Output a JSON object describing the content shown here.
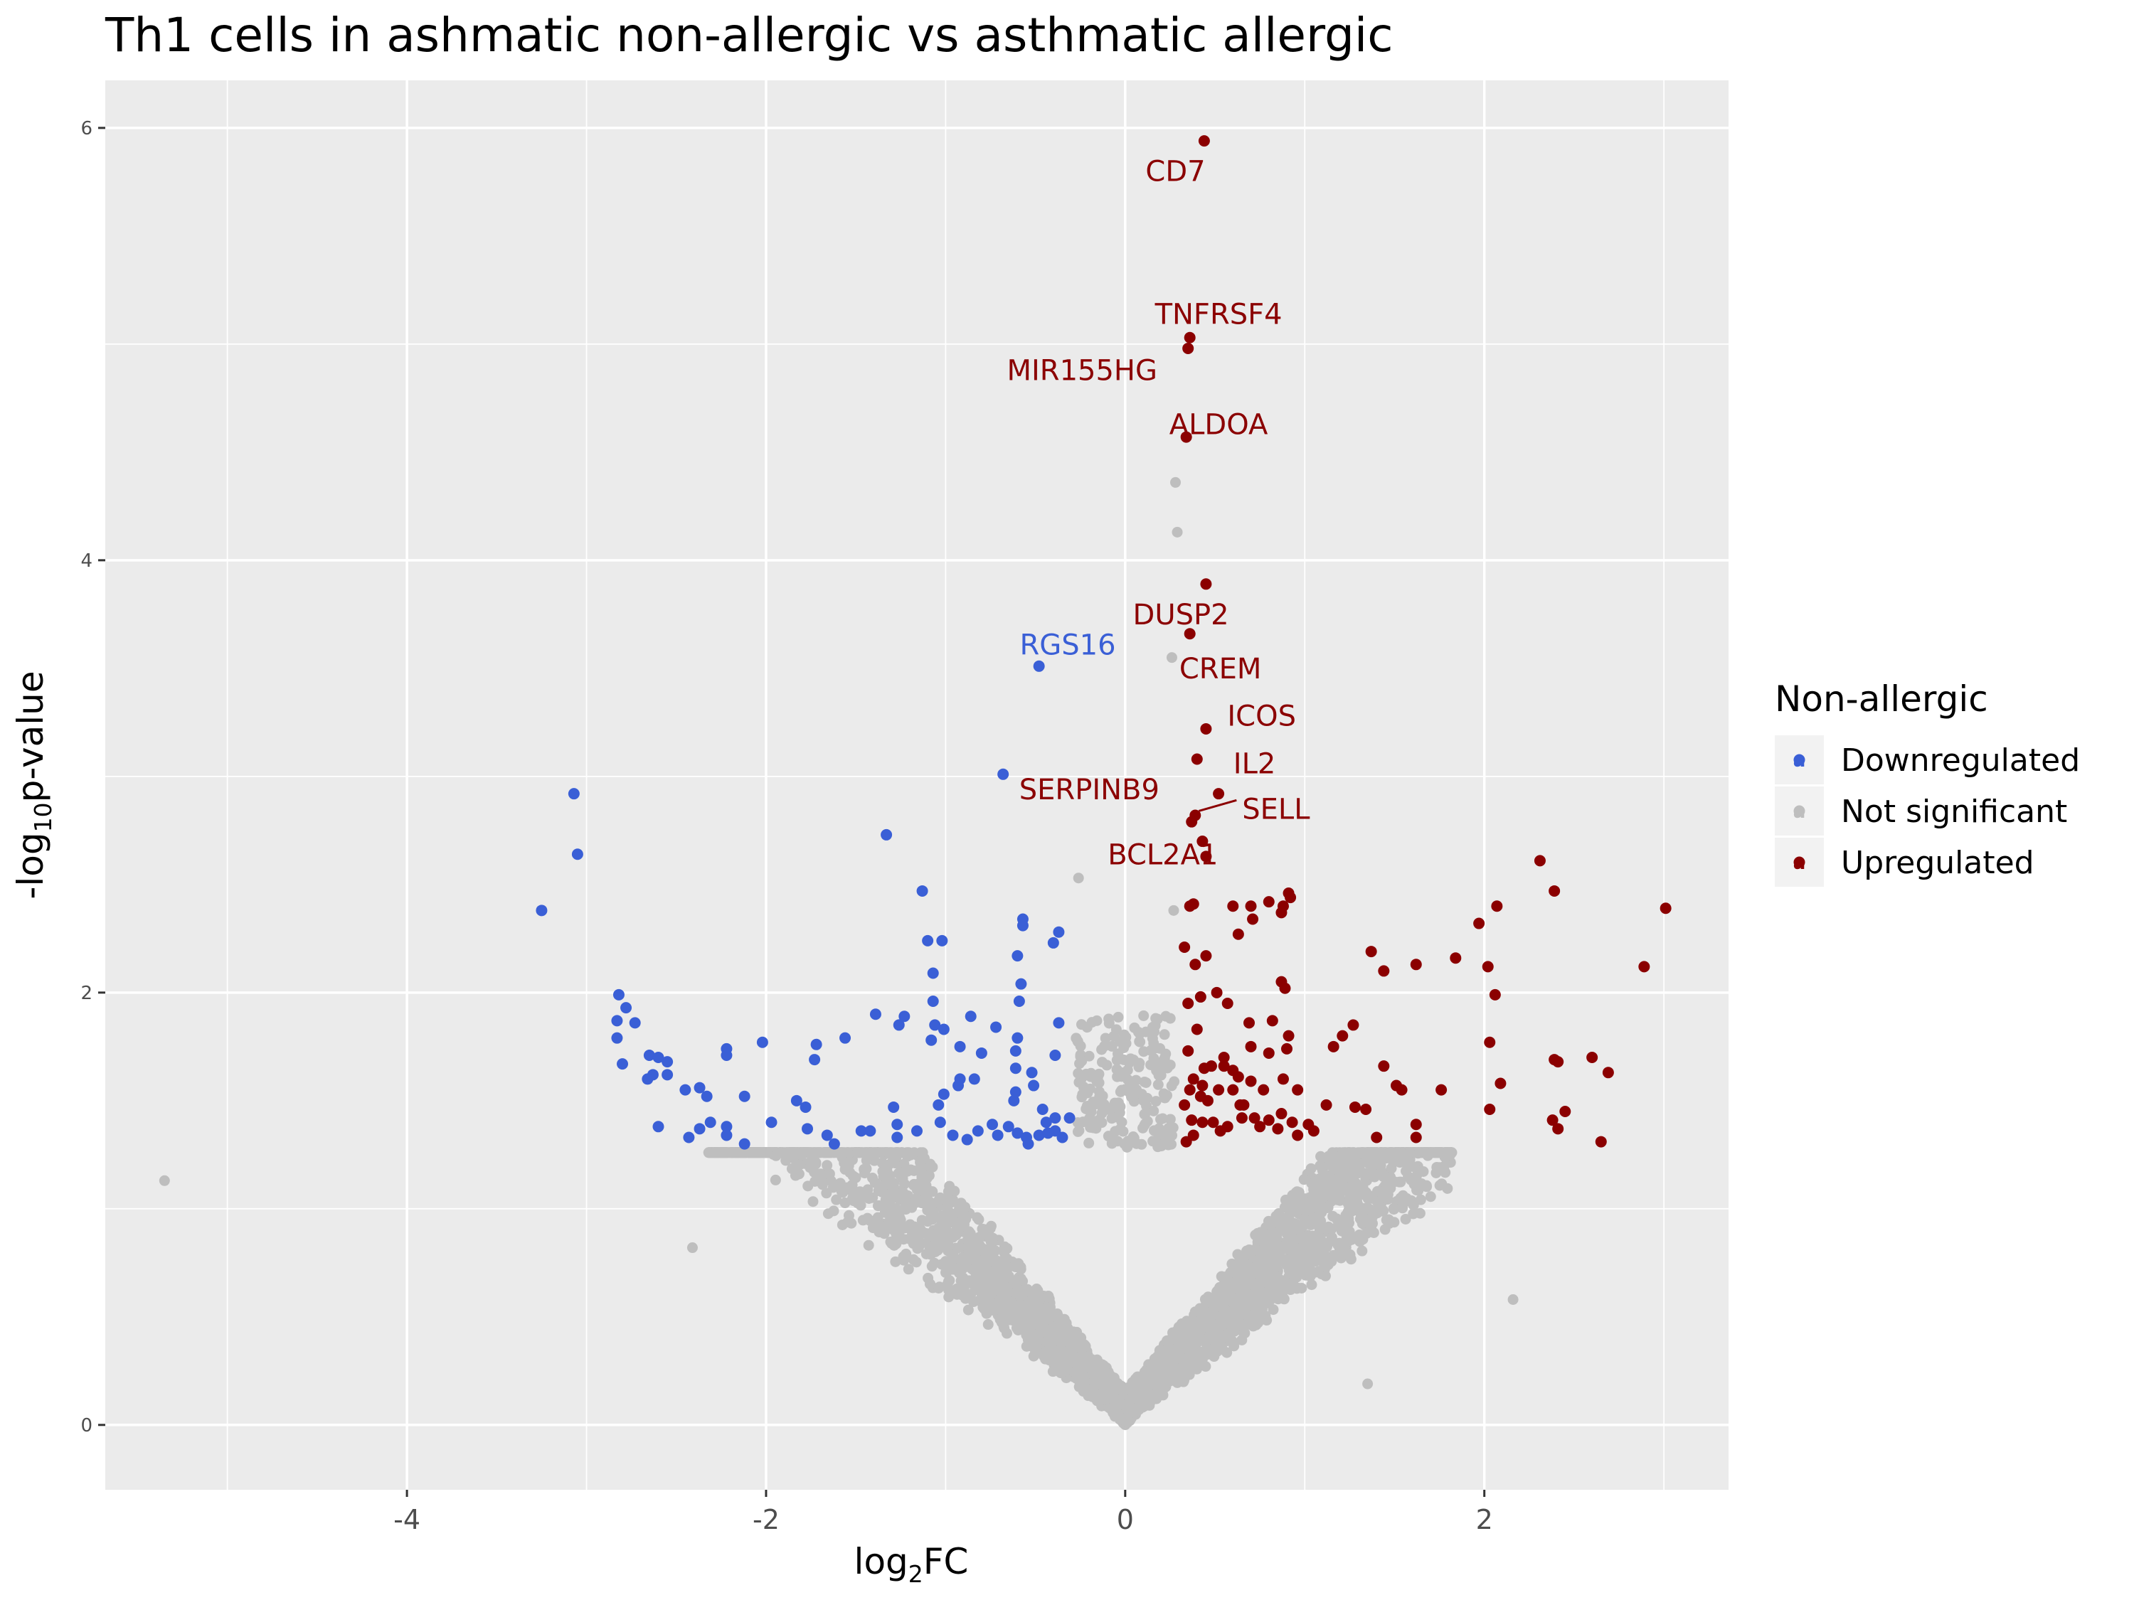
{
  "chart_data": {
    "type": "scatter",
    "title": "Th1 cells in ashmatic non-allergic vs asthmatic allergic",
    "xlabel": {
      "base": "log",
      "subscript": "2",
      "rest": "FC"
    },
    "ylabel": {
      "prefix": "-log",
      "subscript": "10",
      "rest": "p-value"
    },
    "xlim": [
      -5.68,
      3.36
    ],
    "ylim": [
      -0.3,
      6.22
    ],
    "x_ticks": [
      -4,
      -2,
      0,
      2
    ],
    "x_tick_labels": [
      "-4",
      "-2",
      "0",
      "2"
    ],
    "y_ticks": [
      0,
      2,
      4,
      6
    ],
    "y_tick_labels": [
      "0",
      "2",
      "4",
      "6"
    ],
    "grid": true,
    "legend": {
      "title": "Non-allergic",
      "placement": "right",
      "key_glyph": "a",
      "entries": [
        {
          "name": "Downregulated",
          "color": "#3a5fd6"
        },
        {
          "name": "Not significant",
          "color": "#bebebe"
        },
        {
          "name": "Upregulated",
          "color": "#8b0000"
        }
      ]
    },
    "colors": {
      "down": "#3a5fd6",
      "ns": "#bebebe",
      "up": "#8b0000",
      "panel": "#ebebeb",
      "grid": "#ffffff"
    },
    "series": [
      {
        "name": "Downregulated",
        "points": [
          [
            -3.07,
            2.92
          ],
          [
            -3.05,
            2.64
          ],
          [
            -3.25,
            2.38
          ],
          [
            -2.82,
            1.99
          ],
          [
            -2.78,
            1.93
          ],
          [
            -2.83,
            1.87
          ],
          [
            -2.73,
            1.86
          ],
          [
            -2.83,
            1.79
          ],
          [
            -2.8,
            1.67
          ],
          [
            -2.65,
            1.71
          ],
          [
            -2.6,
            1.7
          ],
          [
            -2.55,
            1.68
          ],
          [
            -2.55,
            1.62
          ],
          [
            -2.63,
            1.62
          ],
          [
            -2.66,
            1.6
          ],
          [
            -2.45,
            1.55
          ],
          [
            -2.37,
            1.56
          ],
          [
            -2.33,
            1.52
          ],
          [
            -2.22,
            1.74
          ],
          [
            -2.22,
            1.71
          ],
          [
            -2.02,
            1.77
          ],
          [
            -2.12,
            1.52
          ],
          [
            -1.83,
            1.5
          ],
          [
            -1.72,
            1.76
          ],
          [
            -1.73,
            1.69
          ],
          [
            -1.56,
            1.79
          ],
          [
            -1.39,
            1.9
          ],
          [
            -1.33,
            2.73
          ],
          [
            -1.13,
            2.47
          ],
          [
            -1.1,
            2.24
          ],
          [
            -1.02,
            2.24
          ],
          [
            -1.07,
            2.09
          ],
          [
            -1.07,
            1.96
          ],
          [
            -1.23,
            1.89
          ],
          [
            -1.26,
            1.85
          ],
          [
            -1.06,
            1.85
          ],
          [
            -1.01,
            1.83
          ],
          [
            -0.86,
            1.89
          ],
          [
            -1.08,
            1.78
          ],
          [
            -0.92,
            1.75
          ],
          [
            -0.92,
            1.6
          ],
          [
            -0.93,
            1.57
          ],
          [
            -0.84,
            1.6
          ],
          [
            -0.8,
            1.72
          ],
          [
            -0.72,
            1.84
          ],
          [
            -0.6,
            1.79
          ],
          [
            -0.61,
            1.73
          ],
          [
            -0.61,
            1.65
          ],
          [
            -0.52,
            1.63
          ],
          [
            -0.51,
            1.57
          ],
          [
            -0.61,
            1.54
          ],
          [
            -0.62,
            1.5
          ],
          [
            -0.68,
            3.01
          ],
          [
            -0.48,
            3.51
          ],
          [
            -0.57,
            2.34
          ],
          [
            -0.57,
            2.31
          ],
          [
            -0.6,
            2.17
          ],
          [
            -0.37,
            2.28
          ],
          [
            -0.4,
            2.23
          ],
          [
            -0.58,
            2.04
          ],
          [
            -0.59,
            1.96
          ],
          [
            -0.37,
            1.86
          ],
          [
            -0.39,
            1.71
          ],
          [
            -0.46,
            1.46
          ],
          [
            -0.44,
            1.4
          ],
          [
            -0.39,
            1.42
          ],
          [
            -0.31,
            1.42
          ],
          [
            -0.39,
            1.36
          ],
          [
            -0.35,
            1.33
          ],
          [
            -0.48,
            1.34
          ],
          [
            -0.55,
            1.33
          ],
          [
            -0.6,
            1.35
          ],
          [
            -0.65,
            1.38
          ],
          [
            -0.71,
            1.34
          ],
          [
            -0.82,
            1.36
          ],
          [
            -0.88,
            1.32
          ],
          [
            -0.96,
            1.34
          ],
          [
            -1.01,
            1.53
          ],
          [
            -1.04,
            1.48
          ],
          [
            -1.16,
            1.36
          ],
          [
            -1.27,
            1.39
          ],
          [
            -1.29,
            1.47
          ],
          [
            -1.42,
            1.36
          ],
          [
            -1.47,
            1.36
          ],
          [
            -1.62,
            1.3
          ],
          [
            -1.77,
            1.37
          ],
          [
            -1.78,
            1.47
          ],
          [
            -1.97,
            1.4
          ],
          [
            -2.12,
            1.3
          ],
          [
            -2.22,
            1.38
          ],
          [
            -2.31,
            1.4
          ],
          [
            -2.37,
            1.37
          ],
          [
            -2.43,
            1.33
          ],
          [
            -2.6,
            1.38
          ],
          [
            -2.22,
            1.34
          ],
          [
            -1.66,
            1.34
          ],
          [
            -1.27,
            1.33
          ],
          [
            -1.03,
            1.4
          ],
          [
            -0.74,
            1.39
          ],
          [
            -0.54,
            1.3
          ],
          [
            -0.43,
            1.35
          ]
        ]
      },
      {
        "name": "Upregulated",
        "points": [
          [
            0.44,
            5.94
          ],
          [
            0.36,
            5.03
          ],
          [
            0.35,
            4.98
          ],
          [
            0.34,
            4.57
          ],
          [
            0.45,
            3.89
          ],
          [
            0.36,
            3.66
          ],
          [
            0.45,
            3.22
          ],
          [
            0.4,
            3.08
          ],
          [
            0.52,
            2.92
          ],
          [
            0.39,
            2.82
          ],
          [
            0.37,
            2.79
          ],
          [
            0.43,
            2.7
          ],
          [
            0.45,
            2.63
          ],
          [
            0.38,
            2.41
          ],
          [
            0.36,
            2.4
          ],
          [
            0.6,
            2.4
          ],
          [
            0.7,
            2.4
          ],
          [
            0.71,
            2.34
          ],
          [
            0.63,
            2.27
          ],
          [
            0.8,
            2.42
          ],
          [
            0.88,
            2.4
          ],
          [
            0.91,
            2.46
          ],
          [
            0.87,
            2.37
          ],
          [
            0.92,
            2.44
          ],
          [
            0.87,
            2.05
          ],
          [
            0.89,
            2.02
          ],
          [
            0.45,
            2.17
          ],
          [
            0.39,
            2.13
          ],
          [
            0.33,
            2.21
          ],
          [
            0.42,
            1.98
          ],
          [
            0.51,
            2.0
          ],
          [
            0.35,
            1.95
          ],
          [
            0.57,
            1.95
          ],
          [
            0.69,
            1.86
          ],
          [
            0.82,
            1.87
          ],
          [
            0.4,
            1.83
          ],
          [
            0.91,
            1.8
          ],
          [
            0.35,
            1.73
          ],
          [
            0.44,
            1.65
          ],
          [
            0.48,
            1.66
          ],
          [
            0.55,
            1.66
          ],
          [
            0.7,
            1.75
          ],
          [
            0.8,
            1.72
          ],
          [
            0.9,
            1.74
          ],
          [
            1.16,
            1.75
          ],
          [
            1.21,
            1.8
          ],
          [
            1.27,
            1.85
          ],
          [
            0.38,
            1.6
          ],
          [
            0.43,
            1.57
          ],
          [
            0.36,
            1.55
          ],
          [
            0.42,
            1.52
          ],
          [
            0.33,
            1.48
          ],
          [
            0.52,
            1.55
          ],
          [
            0.6,
            1.55
          ],
          [
            0.63,
            1.61
          ],
          [
            0.7,
            1.59
          ],
          [
            0.77,
            1.55
          ],
          [
            0.88,
            1.6
          ],
          [
            0.96,
            1.55
          ],
          [
            0.37,
            1.41
          ],
          [
            0.43,
            1.4
          ],
          [
            0.38,
            1.34
          ],
          [
            0.34,
            1.31
          ],
          [
            0.49,
            1.4
          ],
          [
            0.53,
            1.36
          ],
          [
            0.57,
            1.38
          ],
          [
            0.64,
            1.48
          ],
          [
            0.65,
            1.42
          ],
          [
            0.72,
            1.42
          ],
          [
            0.75,
            1.38
          ],
          [
            0.8,
            1.41
          ],
          [
            0.85,
            1.37
          ],
          [
            0.87,
            1.44
          ],
          [
            0.93,
            1.4
          ],
          [
            0.96,
            1.34
          ],
          [
            1.02,
            1.39
          ],
          [
            1.05,
            1.36
          ],
          [
            1.12,
            1.48
          ],
          [
            1.28,
            1.47
          ],
          [
            1.34,
            1.46
          ],
          [
            1.4,
            1.33
          ],
          [
            1.44,
            1.66
          ],
          [
            1.51,
            1.57
          ],
          [
            1.54,
            1.55
          ],
          [
            1.62,
            1.33
          ],
          [
            1.62,
            1.39
          ],
          [
            1.37,
            2.19
          ],
          [
            1.44,
            2.1
          ],
          [
            1.62,
            2.13
          ],
          [
            1.84,
            2.16
          ],
          [
            1.97,
            2.32
          ],
          [
            2.02,
            2.12
          ],
          [
            2.07,
            2.4
          ],
          [
            2.06,
            1.99
          ],
          [
            2.03,
            1.77
          ],
          [
            2.03,
            1.46
          ],
          [
            2.09,
            1.58
          ],
          [
            1.76,
            1.55
          ],
          [
            2.31,
            2.61
          ],
          [
            2.39,
            2.47
          ],
          [
            2.39,
            1.69
          ],
          [
            2.41,
            1.68
          ],
          [
            2.38,
            1.41
          ],
          [
            2.41,
            1.37
          ],
          [
            2.45,
            1.45
          ],
          [
            2.6,
            1.7
          ],
          [
            2.69,
            1.63
          ],
          [
            2.65,
            1.31
          ],
          [
            2.89,
            2.12
          ],
          [
            3.01,
            2.39
          ],
          [
            0.6,
            1.64
          ],
          [
            0.66,
            1.48
          ],
          [
            0.55,
            1.7
          ],
          [
            0.46,
            1.5
          ]
        ]
      }
    ],
    "not_significant_shape": {
      "x_min": -2.32,
      "x_max": 1.82,
      "outliers": [
        [
          -5.35,
          1.13
        ],
        [
          -0.26,
          2.53
        ],
        [
          0.28,
          4.36
        ],
        [
          0.29,
          4.13
        ],
        [
          0.26,
          3.55
        ],
        [
          0.27,
          2.38
        ],
        [
          -2.41,
          0.82
        ],
        [
          1.35,
          0.19
        ],
        [
          2.16,
          0.58
        ]
      ]
    },
    "labels": [
      {
        "text": "CD7",
        "x": 0.28,
        "y": 5.8,
        "color": "#8b0000"
      },
      {
        "text": "TNFRSF4",
        "x": 0.52,
        "y": 5.14,
        "color": "#8b0000"
      },
      {
        "text": "MIR155HG",
        "x": -0.24,
        "y": 4.88,
        "color": "#8b0000"
      },
      {
        "text": "ALDOA",
        "x": 0.52,
        "y": 4.63,
        "color": "#8b0000"
      },
      {
        "text": "DUSP2",
        "x": 0.31,
        "y": 3.75,
        "color": "#8b0000"
      },
      {
        "text": "CREM",
        "x": 0.53,
        "y": 3.5,
        "color": "#8b0000"
      },
      {
        "text": "ICOS",
        "x": 0.76,
        "y": 3.28,
        "color": "#8b0000"
      },
      {
        "text": "IL2",
        "x": 0.72,
        "y": 3.06,
        "color": "#8b0000"
      },
      {
        "text": "SERPINB9",
        "x": -0.2,
        "y": 2.94,
        "color": "#8b0000"
      },
      {
        "text": "SELL",
        "x": 0.84,
        "y": 2.85,
        "color": "#8b0000"
      },
      {
        "text": "BCL2A1",
        "x": 0.21,
        "y": 2.64,
        "color": "#8b0000"
      },
      {
        "text": "RGS16",
        "x": -0.32,
        "y": 3.61,
        "color": "#3a5fd6"
      }
    ]
  }
}
